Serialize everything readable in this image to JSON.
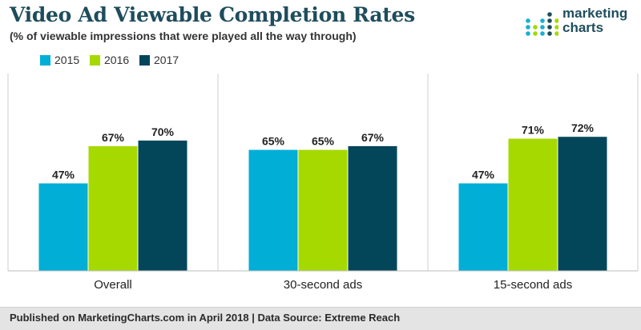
{
  "header": {
    "title": "Video Ad Viewable Completion Rates",
    "subtitle": "(% of viewable impressions that were played all the way through)"
  },
  "logo": {
    "line1": "marketing",
    "line2": "charts",
    "icon": "dot-bars-logo-icon",
    "colors": [
      "#1e4d5c",
      "#16b0d4",
      "#a6d700"
    ]
  },
  "chart_data": {
    "type": "bar",
    "categories": [
      "Overall",
      "30-second ads",
      "15-second ads"
    ],
    "series": [
      {
        "name": "2015",
        "color": "#00aed6",
        "values": [
          47,
          65,
          47
        ]
      },
      {
        "name": "2016",
        "color": "#a6d900",
        "values": [
          67,
          65,
          71
        ]
      },
      {
        "name": "2017",
        "color": "#03465a",
        "values": [
          70,
          67,
          72
        ]
      }
    ],
    "value_suffix": "%",
    "ylim": [
      0,
      100
    ],
    "grid": false,
    "legend": "top-left",
    "group_dividers": true
  },
  "footer": {
    "text": "Published on MarketingCharts.com in April 2018 | Data Source: Extreme Reach"
  }
}
